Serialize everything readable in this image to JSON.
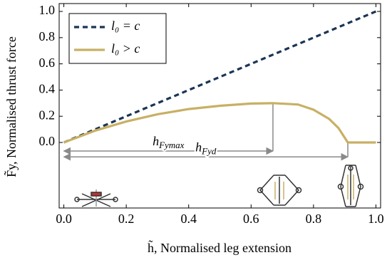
{
  "chart_data": {
    "type": "line",
    "xlabel": "h̃, Normalised leg extension",
    "ylabel": "F̃y, Normalised thrust force",
    "series": [
      {
        "name": "l₀ = c",
        "color": "#1b3553",
        "dash": true,
        "x": [
          0,
          1.0
        ],
        "values": [
          0,
          1.0
        ]
      },
      {
        "name": "l₀ > c",
        "color": "#c8b064",
        "dash": false,
        "x": [
          0,
          0.1,
          0.2,
          0.3,
          0.4,
          0.5,
          0.6,
          0.67,
          0.75,
          0.8,
          0.85,
          0.88,
          0.91,
          0.95,
          1.0
        ],
        "values": [
          0,
          0.09,
          0.16,
          0.215,
          0.255,
          0.28,
          0.297,
          0.3,
          0.29,
          0.25,
          0.18,
          0.11,
          0,
          0,
          0
        ]
      }
    ],
    "annotations": [
      {
        "text": "h",
        "subscript": "Fymax",
        "x": [
          0,
          0.67
        ],
        "y": -0.065,
        "from": 0.3
      },
      {
        "text": "h",
        "subscript": "Fyd",
        "x": [
          0,
          0.91
        ],
        "y": -0.11,
        "from": 0
      }
    ],
    "xlim": [
      -0.015,
      1.015
    ],
    "ylim": [
      -0.5,
      1.06
    ],
    "xticks": [
      {
        "value": 0,
        "label": "0.0"
      },
      {
        "value": 0.2,
        "label": "0.2"
      },
      {
        "value": 0.4,
        "label": "0.4"
      },
      {
        "value": 0.6,
        "label": "0.6"
      },
      {
        "value": 0.8,
        "label": "0.8"
      },
      {
        "value": 1,
        "label": "1.0"
      }
    ],
    "yticks": [
      {
        "value": 0,
        "label": "0.0"
      },
      {
        "value": 0.2,
        "label": "0.2"
      },
      {
        "value": 0.4,
        "label": "0.4"
      },
      {
        "value": 0.6,
        "label": "0.6"
      },
      {
        "value": 0.8,
        "label": "0.8"
      },
      {
        "value": 1,
        "label": "1.0"
      }
    ],
    "legend": "upper-left",
    "grid": false
  }
}
